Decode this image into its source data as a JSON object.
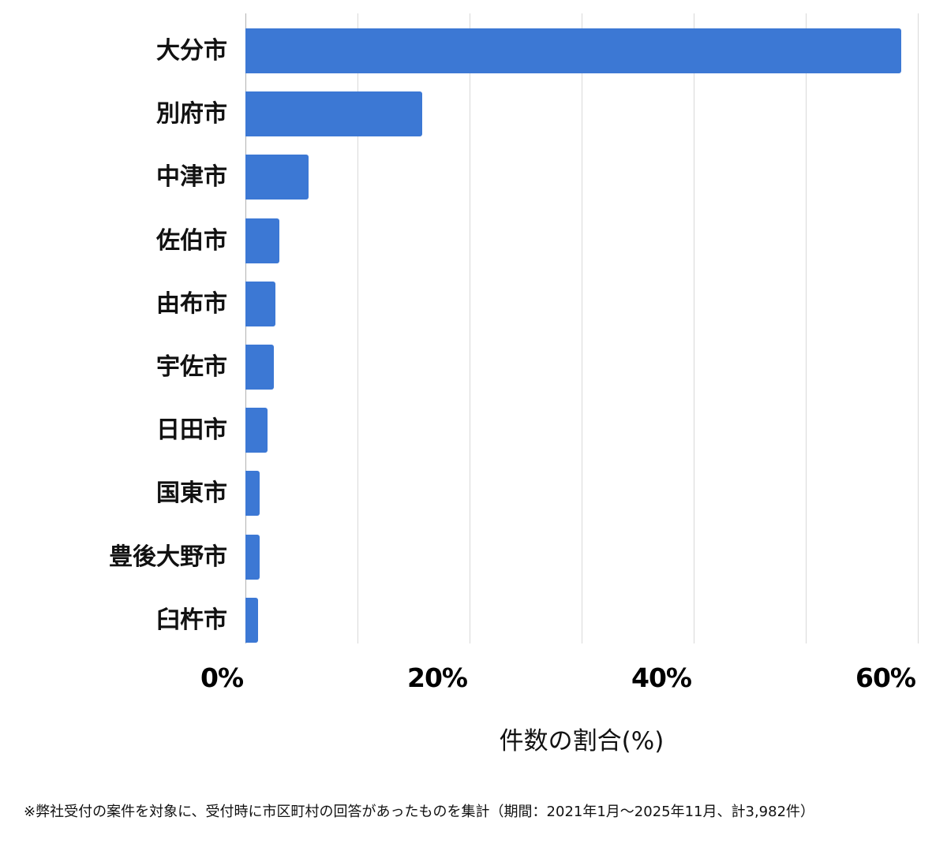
{
  "chart_data": {
    "type": "bar",
    "orientation": "horizontal",
    "title": "",
    "xlabel": "件数の割合(%)",
    "ylabel": "",
    "xlim": [
      0,
      60
    ],
    "x_ticks": [
      "0%",
      "20%",
      "40%",
      "60%"
    ],
    "grid": true,
    "grid_step": 10,
    "bar_color": "#3c78d4",
    "categories": [
      "大分市",
      "別府市",
      "中津市",
      "佐伯市",
      "由布市",
      "宇佐市",
      "日田市",
      "国東市",
      "豊後大野市",
      "臼杵市"
    ],
    "values": [
      58.5,
      15.8,
      5.6,
      3.0,
      2.7,
      2.5,
      2.0,
      1.3,
      1.3,
      1.1
    ],
    "footnote": "※弊社受付の案件を対象に、受付時に市区町村の回答があったものを集計（期間：2021年1月〜2025年11月、計3,982件）"
  }
}
